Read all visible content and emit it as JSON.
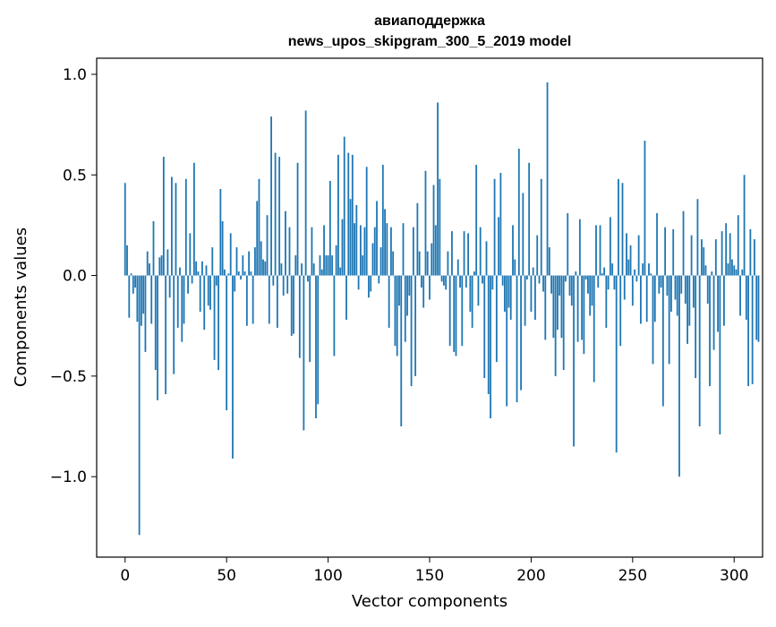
{
  "chart_data": {
    "type": "bar",
    "title": "авиаподдержка",
    "subtitle": "news_upos_skipgram_300_5_2019 model",
    "xlabel": "Vector components",
    "ylabel": "Components values",
    "xlim": [
      -14,
      314
    ],
    "ylim": [
      -1.4,
      1.08
    ],
    "xticks": [
      0,
      50,
      100,
      150,
      200,
      250,
      300
    ],
    "xtick_labels": [
      "0",
      "50",
      "100",
      "150",
      "200",
      "250",
      "300"
    ],
    "yticks": [
      -1.0,
      -0.5,
      0.0,
      0.5,
      1.0
    ],
    "ytick_labels": [
      "−1.0",
      "−0.5",
      "0.0",
      "0.5",
      "1.0"
    ],
    "bar_color": "#1f77b4",
    "x_start": 0,
    "values": [
      0.46,
      0.15,
      -0.21,
      0.01,
      -0.09,
      -0.06,
      -0.23,
      -1.29,
      -0.25,
      -0.19,
      -0.38,
      0.12,
      0.06,
      -0.24,
      0.27,
      -0.47,
      -0.62,
      0.09,
      0.1,
      0.59,
      -0.59,
      0.13,
      -0.11,
      0.49,
      -0.49,
      0.46,
      -0.26,
      0.04,
      -0.33,
      -0.24,
      0.48,
      -0.09,
      0.21,
      -0.04,
      0.56,
      0.07,
      0.02,
      -0.18,
      0.07,
      -0.27,
      0.05,
      -0.15,
      -0.17,
      0.14,
      -0.42,
      -0.05,
      -0.47,
      0.43,
      0.27,
      0.03,
      -0.67,
      0.01,
      0.21,
      -0.91,
      -0.08,
      0.14,
      0.02,
      -0.02,
      0.1,
      0.02,
      -0.25,
      0.12,
      0.02,
      -0.24,
      0.14,
      0.37,
      0.48,
      0.17,
      0.08,
      0.07,
      0.3,
      -0.24,
      0.79,
      -0.05,
      0.61,
      -0.26,
      0.59,
      0.06,
      -0.1,
      0.32,
      -0.09,
      0.24,
      -0.3,
      -0.29,
      0.1,
      0.56,
      -0.41,
      0.06,
      -0.77,
      0.82,
      -0.03,
      -0.43,
      0.24,
      0.06,
      -0.71,
      -0.64,
      0.1,
      0.03,
      0.25,
      0.1,
      0.1,
      0.47,
      0.1,
      -0.4,
      0.15,
      0.6,
      0.04,
      0.28,
      0.69,
      -0.22,
      0.61,
      0.38,
      0.6,
      0.26,
      0.35,
      -0.07,
      0.25,
      0.1,
      0.24,
      0.54,
      -0.11,
      -0.08,
      0.16,
      0.24,
      0.37,
      -0.04,
      0.14,
      0.55,
      0.33,
      0.26,
      -0.26,
      0.24,
      0.12,
      -0.35,
      -0.4,
      -0.15,
      -0.75,
      0.26,
      -0.33,
      -0.2,
      -0.1,
      -0.55,
      0.24,
      -0.5,
      0.36,
      0.12,
      -0.06,
      -0.16,
      0.52,
      0.12,
      -0.12,
      0.16,
      0.45,
      0.25,
      0.86,
      0.48,
      -0.03,
      -0.05,
      -0.07,
      0.12,
      -0.35,
      0.22,
      -0.38,
      -0.4,
      0.08,
      -0.06,
      -0.35,
      0.22,
      -0.06,
      0.21,
      -0.18,
      -0.26,
      0.02,
      0.55,
      -0.15,
      0.24,
      -0.04,
      -0.51,
      0.17,
      -0.59,
      -0.71,
      -0.07,
      0.48,
      -0.43,
      0.29,
      0.51,
      -0.05,
      -0.18,
      -0.65,
      -0.16,
      -0.22,
      0.25,
      0.08,
      -0.63,
      0.63,
      -0.57,
      0.41,
      -0.25,
      -0.02,
      0.56,
      -0.18,
      0.04,
      -0.22,
      0.2,
      -0.04,
      0.48,
      -0.08,
      -0.32,
      0.96,
      0.14,
      -0.09,
      -0.31,
      -0.5,
      -0.27,
      -0.1,
      -0.31,
      -0.47,
      -0.03,
      0.31,
      -0.1,
      -0.15,
      -0.85,
      0.02,
      -0.33,
      0.28,
      -0.32,
      -0.39,
      -0.02,
      -0.09,
      -0.2,
      -0.15,
      -0.53,
      0.25,
      -0.06,
      0.25,
      0.01,
      0.04,
      -0.26,
      -0.07,
      0.29,
      0.06,
      -0.07,
      -0.88,
      0.48,
      -0.35,
      0.46,
      -0.12,
      0.21,
      0.08,
      0.15,
      -0.15,
      0.03,
      -0.03,
      0.2,
      -0.24,
      0.06,
      0.67,
      -0.23,
      0.06,
      0.01,
      -0.44,
      -0.23,
      0.31,
      -0.09,
      -0.06,
      -0.65,
      0.24,
      -0.1,
      -0.44,
      -0.18,
      0.23,
      -0.12,
      -0.2,
      -1.0,
      -0.09,
      0.32,
      -0.14,
      -0.34,
      -0.25,
      0.2,
      -0.16,
      -0.51,
      0.38,
      -0.75,
      0.18,
      0.14,
      0.05,
      -0.14,
      -0.55,
      0.02,
      -0.37,
      0.18,
      -0.28,
      -0.79,
      0.22,
      -0.25,
      0.26,
      0.06,
      0.21,
      0.08,
      0.05,
      0.03,
      0.3,
      -0.2,
      0.03,
      0.5,
      -0.22,
      -0.55,
      0.23,
      -0.54,
      0.18,
      -0.32,
      -0.33
    ]
  }
}
